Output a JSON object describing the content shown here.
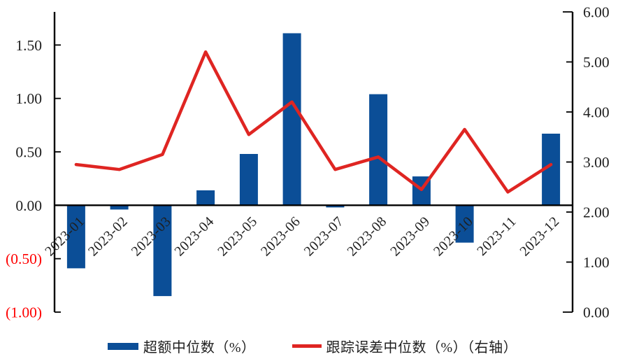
{
  "chart_data": {
    "type": "combo",
    "categories": [
      "2023-01",
      "2023-02",
      "2023-03",
      "2023-04",
      "2023-05",
      "2023-06",
      "2023-07",
      "2023-08",
      "2023-09",
      "2023-10",
      "2023-11",
      "2023-12"
    ],
    "series": [
      {
        "name": "超额中位数（%）",
        "type": "bar",
        "axis": "left",
        "color": "#0B4E97",
        "values": [
          -0.59,
          -0.04,
          -0.85,
          0.14,
          0.48,
          1.61,
          -0.02,
          1.04,
          0.27,
          -0.35,
          0.0,
          0.67
        ]
      },
      {
        "name": "跟踪误差中位数（%）（右轴）",
        "type": "line",
        "axis": "right",
        "color": "#DF2522",
        "values": [
          2.95,
          2.85,
          3.15,
          5.2,
          3.55,
          4.2,
          2.85,
          3.1,
          2.45,
          3.65,
          2.4,
          2.95
        ]
      }
    ],
    "left_axis": {
      "range": [
        -1.0,
        1.81
      ],
      "ticks": [
        {
          "label": "1.50",
          "value": 1.5,
          "color": "#1f1f1f"
        },
        {
          "label": "1.00",
          "value": 1.0,
          "color": "#1f1f1f"
        },
        {
          "label": "0.50",
          "value": 0.5,
          "color": "#1f1f1f"
        },
        {
          "label": "0.00",
          "value": 0.0,
          "color": "#1f1f1f"
        },
        {
          "label": "(0.50)",
          "value": -0.5,
          "color": "#ff0000"
        },
        {
          "label": "(1.00)",
          "value": -1.0,
          "color": "#ff0000"
        }
      ]
    },
    "right_axis": {
      "range": [
        0,
        6
      ],
      "ticks": [
        {
          "label": "6.00",
          "value": 6,
          "color": "#1f1f1f"
        },
        {
          "label": "5.00",
          "value": 5,
          "color": "#1f1f1f"
        },
        {
          "label": "4.00",
          "value": 4,
          "color": "#1f1f1f"
        },
        {
          "label": "3.00",
          "value": 3,
          "color": "#1f1f1f"
        },
        {
          "label": "2.00",
          "value": 2,
          "color": "#1f1f1f"
        },
        {
          "label": "1.00",
          "value": 1,
          "color": "#1f1f1f"
        },
        {
          "label": "0.00",
          "value": 0,
          "color": "#1f1f1f"
        }
      ]
    },
    "grid": false,
    "legend_position": "bottom",
    "axis_color": "#000000",
    "label_color": "#1f1f1f"
  }
}
